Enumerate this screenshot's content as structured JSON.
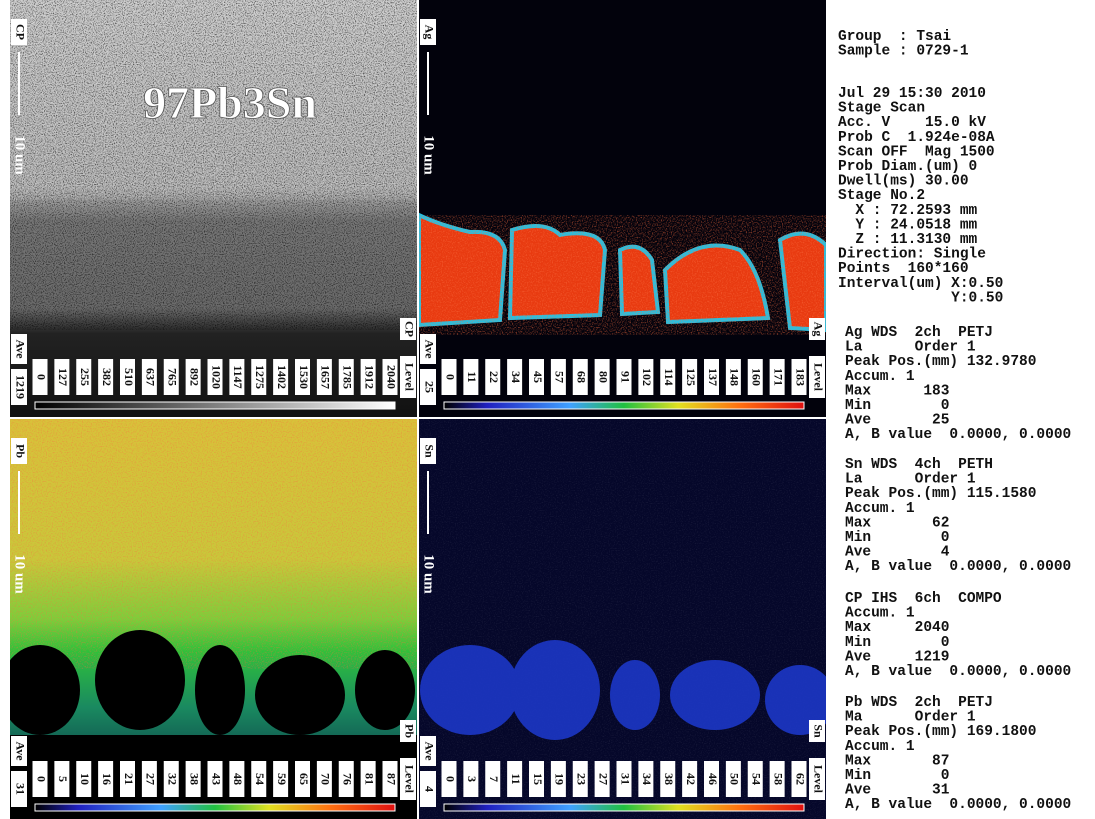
{
  "panels": [
    {
      "element": "CP",
      "scale": "10 um",
      "ave_label": "Ave",
      "ave": 1219,
      "corner": "CP",
      "level": "Level",
      "overlay": "97Pb3Sn",
      "ticks": [
        0,
        127,
        255,
        382,
        510,
        637,
        765,
        892,
        1020,
        1147,
        1275,
        1402,
        1530,
        1657,
        1785,
        1912,
        2040
      ]
    },
    {
      "element": "Ag",
      "scale": "10 um",
      "ave_label": "Ave",
      "ave": 25,
      "corner": "Ag",
      "level": "Level",
      "ticks": [
        0,
        11,
        22,
        34,
        45,
        57,
        68,
        80,
        91,
        102,
        114,
        125,
        137,
        148,
        160,
        171,
        183
      ]
    },
    {
      "element": "Pb",
      "scale": "10 um",
      "ave_label": "Ave",
      "ave": 31,
      "corner": "Pb",
      "level": "Level",
      "ticks": [
        0,
        5,
        10,
        16,
        21,
        27,
        32,
        38,
        43,
        48,
        54,
        59,
        65,
        70,
        76,
        81,
        87
      ]
    },
    {
      "element": "Sn",
      "scale": "10 um",
      "ave_label": "Ave",
      "ave": 4,
      "corner": "Sn",
      "level": "Level",
      "ticks": [
        0,
        3,
        7,
        11,
        15,
        19,
        23,
        27,
        31,
        34,
        38,
        42,
        46,
        50,
        54,
        58,
        62
      ]
    }
  ],
  "info": {
    "groups": [
      [
        "Group  : Tsai",
        "Sample : 0729-1"
      ],
      [
        "Jul 29 15:30 2010",
        "Stage Scan",
        "Acc. V    15.0 kV",
        "Prob C  1.924e-08A",
        "Scan OFF  Mag 1500",
        "Prob Diam.(um) 0",
        "Dwell(ms) 30.00",
        "Stage No.2",
        "  X : 72.2593 mm",
        "  Y : 24.0518 mm",
        "  Z : 11.3130 mm",
        "Direction: Single",
        "Points  160*160",
        "Interval(um) X:0.50",
        "             Y:0.50"
      ],
      [
        "Ag WDS  2ch  PETJ",
        "La      Order 1",
        "Peak Pos.(mm) 132.9780",
        "Accum. 1",
        "Max      183",
        "Min        0",
        "Ave       25",
        "A, B value  0.0000, 0.0000"
      ],
      [
        "Sn WDS  4ch  PETH",
        "La      Order 1",
        "Peak Pos.(mm) 115.1580",
        "Accum. 1",
        "Max       62",
        "Min        0",
        "Ave        4",
        "A, B value  0.0000, 0.0000"
      ],
      [
        "CP IHS  6ch  COMPO",
        "Accum. 1",
        "Max     2040",
        "Min        0",
        "Ave     1219",
        "A, B value  0.0000, 0.0000"
      ],
      [
        "Pb WDS  2ch  PETJ",
        "Ma      Order 1",
        "Peak Pos.(mm) 169.1800",
        "Accum. 1",
        "Max       87",
        "Min        0",
        "Ave       31",
        "A, B value  0.0000, 0.0000"
      ]
    ]
  }
}
